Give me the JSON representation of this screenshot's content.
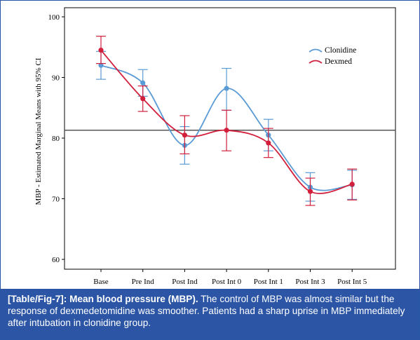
{
  "chart_data": {
    "type": "line",
    "title": "",
    "xlabel": "",
    "ylabel": "MBP - Estimated Marginal Means with 95% CI",
    "ylim": [
      58,
      101
    ],
    "yticks": [
      60,
      70,
      80,
      90,
      100
    ],
    "categories": [
      "Base",
      "Pre Ind",
      "Post Ind",
      "Post Int 0",
      "Post Int 1",
      "Post Int 3",
      "Post Int 5"
    ],
    "reference_line": 81.3,
    "legend_position": "top-right",
    "series": [
      {
        "name": "Clonidine",
        "color": "#5b9bd5",
        "values": [
          92.0,
          89.1,
          78.8,
          88.2,
          80.5,
          71.9,
          72.3
        ],
        "ci_low": [
          89.7,
          86.9,
          75.7,
          84.6,
          77.9,
          69.6,
          69.9
        ],
        "ci_high": [
          94.3,
          91.3,
          81.9,
          91.5,
          83.1,
          74.3,
          74.7
        ]
      },
      {
        "name": "Dexmed",
        "color": "#d21f3c",
        "values": [
          94.5,
          86.5,
          80.5,
          81.3,
          79.2,
          71.2,
          72.4
        ],
        "ci_low": [
          92.3,
          84.4,
          77.4,
          77.9,
          76.8,
          68.9,
          69.8
        ],
        "ci_high": [
          96.8,
          88.6,
          83.7,
          84.6,
          81.6,
          73.4,
          74.9
        ]
      }
    ]
  },
  "caption": {
    "label": "[Table/Fig-7]:",
    "heading": "Mean blood pressure (MBP).",
    "text": "The control of MBP was almost similar but the response of dexmedetomidine was smoother. Patients had a sharp uprise in MBP immediately after intubation in clonidine group."
  }
}
